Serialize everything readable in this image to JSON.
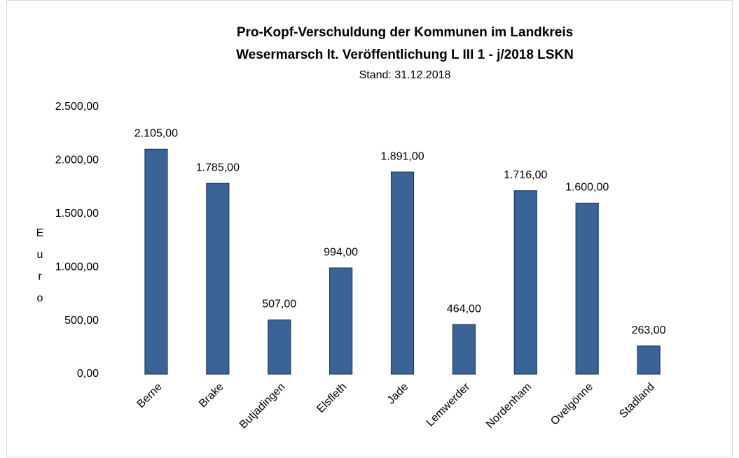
{
  "chart_data": {
    "type": "bar",
    "title": [
      "Pro-Kopf-Verschuldung der Kommunen im Landkreis",
      "Wesermarsch lt. Veröffentlichung L III 1 - j/2018 LSKN"
    ],
    "subtitle": "Stand: 31.12.2018",
    "y_label": "Euro",
    "categories": [
      "Berne",
      "Brake",
      "Butjadingen",
      "Elsfleth",
      "Jade",
      "Lemwerder",
      "Nordenham",
      "Ovelgönne",
      "Stadland"
    ],
    "values": [
      2105,
      1785,
      507,
      994,
      1891,
      464,
      1716,
      1600,
      263
    ],
    "value_labels": [
      "2.105,00",
      "1.785,00",
      "507,00",
      "994,00",
      "1.891,00",
      "464,00",
      "1.716,00",
      "1.600,00",
      "263,00"
    ],
    "color": "#3a6497",
    "ylim": [
      0,
      2500
    ],
    "yticks": [
      {
        "value": 0,
        "label": "0,00"
      },
      {
        "value": 500,
        "label": "500,00"
      },
      {
        "value": 1000,
        "label": "1.000,00"
      },
      {
        "value": 1500,
        "label": "1.500,00"
      },
      {
        "value": 2000,
        "label": "2.000,00"
      },
      {
        "value": 2500,
        "label": "2.500,00"
      }
    ],
    "grid": false
  }
}
